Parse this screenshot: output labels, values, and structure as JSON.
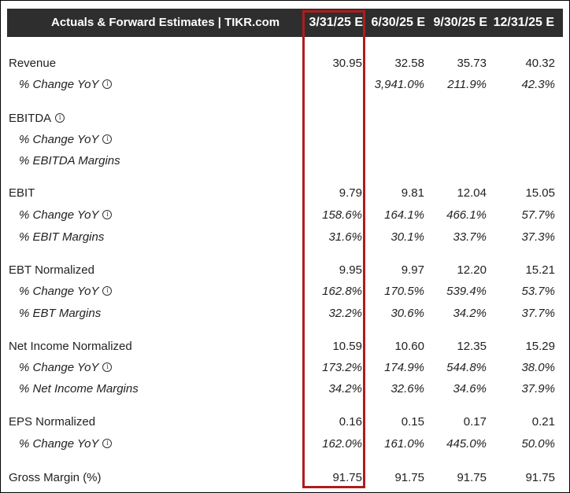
{
  "header": {
    "title": "Actuals & Forward Estimates | TIKR.com",
    "columns": [
      "3/31/25 E",
      "6/30/25 E",
      "9/30/25 E",
      "12/31/25 E"
    ]
  },
  "rows": [
    {
      "label": "Revenue",
      "values": [
        "30.95",
        "32.58",
        "35.73",
        "40.32"
      ]
    },
    {
      "label": "% Change YoY",
      "values": [
        "",
        "3,941.0%",
        "211.9%",
        "42.3%"
      ]
    },
    {
      "label": "EBITDA",
      "values": [
        "",
        "",
        "",
        ""
      ]
    },
    {
      "label": "% Change YoY",
      "values": [
        "",
        "",
        "",
        ""
      ]
    },
    {
      "label": "% EBITDA Margins",
      "values": [
        "",
        "",
        "",
        ""
      ]
    },
    {
      "label": "EBIT",
      "values": [
        "9.79",
        "9.81",
        "12.04",
        "15.05"
      ]
    },
    {
      "label": "% Change YoY",
      "values": [
        "158.6%",
        "164.1%",
        "466.1%",
        "57.7%"
      ]
    },
    {
      "label": "% EBIT Margins",
      "values": [
        "31.6%",
        "30.1%",
        "33.7%",
        "37.3%"
      ]
    },
    {
      "label": "EBT Normalized",
      "values": [
        "9.95",
        "9.97",
        "12.20",
        "15.21"
      ]
    },
    {
      "label": "% Change YoY",
      "values": [
        "162.8%",
        "170.5%",
        "539.4%",
        "53.7%"
      ]
    },
    {
      "label": "% EBT Margins",
      "values": [
        "32.2%",
        "30.6%",
        "34.2%",
        "37.7%"
      ]
    },
    {
      "label": "Net Income Normalized",
      "values": [
        "10.59",
        "10.60",
        "12.35",
        "15.29"
      ]
    },
    {
      "label": "% Change YoY",
      "values": [
        "173.2%",
        "174.9%",
        "544.8%",
        "38.0%"
      ]
    },
    {
      "label": "% Net Income Margins",
      "values": [
        "34.2%",
        "32.6%",
        "34.6%",
        "37.9%"
      ]
    },
    {
      "label": "EPS Normalized",
      "values": [
        "0.16",
        "0.15",
        "0.17",
        "0.21"
      ]
    },
    {
      "label": "% Change YoY",
      "values": [
        "162.0%",
        "161.0%",
        "445.0%",
        "50.0%"
      ]
    },
    {
      "label": "Gross Margin (%)",
      "values": [
        "91.75",
        "91.75",
        "91.75",
        "91.75"
      ]
    }
  ],
  "info_icon": "info-circle-icon",
  "highlight_color": "#b01c1c"
}
